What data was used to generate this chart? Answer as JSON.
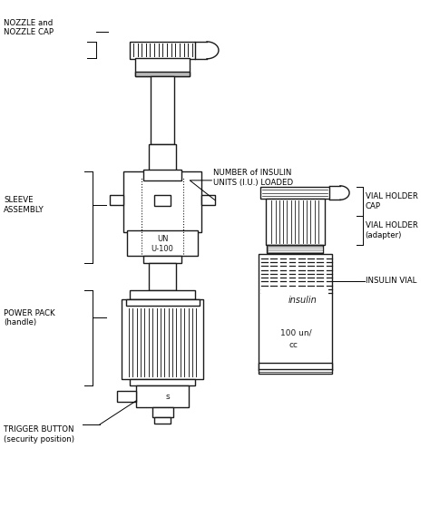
{
  "figure_width": 4.74,
  "figure_height": 5.59,
  "dpi": 100,
  "bg_color": "#ffffff",
  "line_color": "#1a1a1a",
  "labels": {
    "nozzle": "NOZZLE and\nNOZZLE CAP",
    "sleeve": "SLEEVE\nASSEMBLY",
    "number_insulin": "NUMBER of INSULIN\nUNITS (I.U.) LOADED",
    "power_pack": "POWER PACK\n(handle)",
    "trigger": "TRIGGER BUTTON\n(security position)",
    "vial_holder_cap": "VIAL HOLDER\nCAP",
    "vial_holder": "VIAL HOLDER\n(adapter)",
    "insulin_vial": "INSULIN VIAL",
    "un_label": "UN\nU-100",
    "insulin_label": "insulin",
    "volume_label": "100 un/cc",
    "s_label": "s"
  }
}
